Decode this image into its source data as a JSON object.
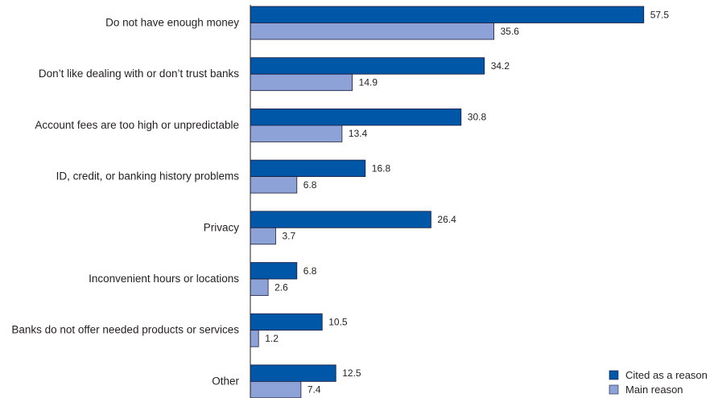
{
  "colors": {
    "cited": "#0057a8",
    "main": "#8da2d6",
    "stroke": "#1a1a3a",
    "axis": "#231f20"
  },
  "legend": {
    "items": [
      {
        "label": "Cited as a reason",
        "color_key": "cited"
      },
      {
        "label": "Main reason",
        "color_key": "main"
      }
    ]
  },
  "chart_data": {
    "type": "bar",
    "orientation": "horizontal",
    "categories": [
      "Do not have enough money",
      "Don’t like dealing with or don’t trust banks",
      "Account fees are too high or unpredictable",
      "ID, credit, or banking history problems",
      "Privacy",
      "Inconvenient hours or locations",
      "Banks do not offer needed products or services",
      "Other"
    ],
    "series": [
      {
        "name": "Cited as a reason",
        "values": [
          57.5,
          34.2,
          30.8,
          16.8,
          26.4,
          6.8,
          10.5,
          12.5
        ]
      },
      {
        "name": "Main reason",
        "values": [
          35.6,
          14.9,
          13.4,
          6.8,
          3.7,
          2.6,
          1.2,
          7.4
        ]
      }
    ],
    "value_labels": [
      [
        "57.5",
        "34.2",
        "30.8",
        "16.8",
        "26.4",
        "6.8",
        "10.5",
        "12.5"
      ],
      [
        "35.6",
        "14.9",
        "13.4",
        "6.8",
        "3.7",
        "2.6",
        "1.2",
        "7.4"
      ]
    ],
    "xlim": [
      0,
      58
    ],
    "grid": false,
    "legend_position": "bottom-right",
    "title": "",
    "xlabel": "",
    "ylabel": ""
  }
}
